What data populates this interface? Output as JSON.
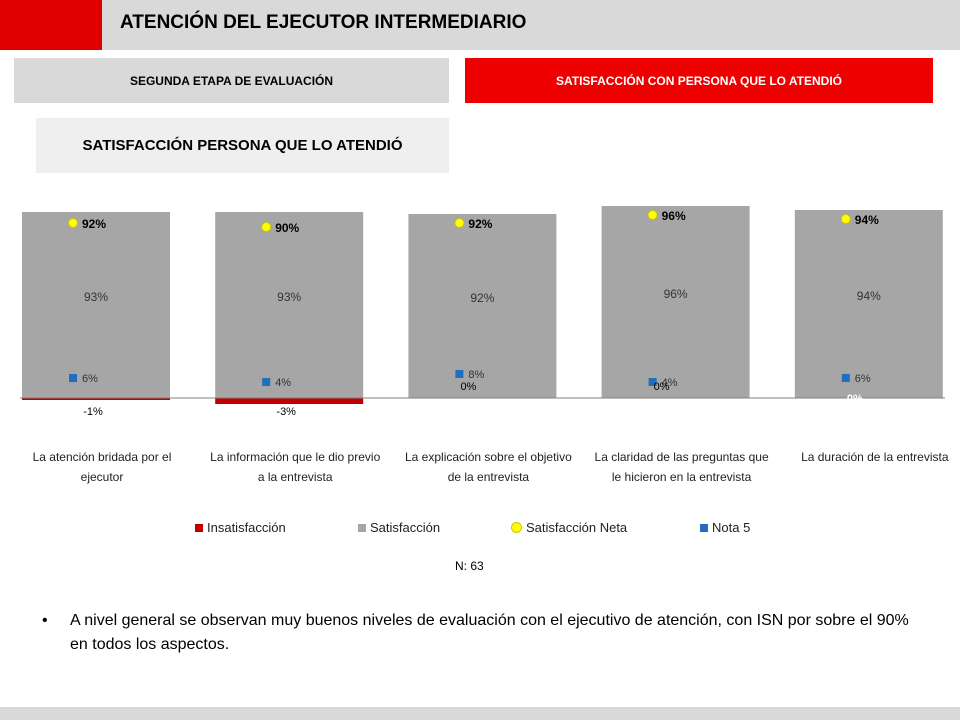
{
  "header": {
    "title": "ATENCIÓN DEL EJECUTOR INTERMEDIARIO"
  },
  "tabs": {
    "stage": "SEGUNDA ETAPA DE EVALUACIÓN",
    "satisfaction": "SATISFACCIÓN CON PERSONA QUE LO ATENDIÓ"
  },
  "section_title": "SATISFACCIÓN PERSONA QUE LO ATENDIÓ",
  "colors": {
    "insatisfaccion": "#c00000",
    "satisfaccion": "#a6a6a6",
    "neta": "#ffff00",
    "nota5": "#1f6fc0",
    "accent": "#ee0000"
  },
  "chart_data": {
    "type": "bar",
    "categories": [
      [
        "La atención bridada por el",
        "ejecutor"
      ],
      [
        "La información que le dio previo",
        "a la entrevista"
      ],
      [
        "La explicación sobre el objetivo",
        "de la entrevista"
      ],
      [
        "La claridad de las preguntas que",
        "le hicieron en la entrevista"
      ],
      [
        "La duración de la entrevista"
      ]
    ],
    "series": [
      {
        "name": "Insatisfacción",
        "values": [
          -1,
          -3,
          0,
          0,
          0
        ],
        "labels": [
          "-1%",
          "-3%",
          "0%",
          "0%",
          "0%"
        ]
      },
      {
        "name": "Satisfacción",
        "values": [
          93,
          93,
          92,
          96,
          94
        ],
        "labels": [
          "93%",
          "93%",
          "92%",
          "96%",
          "94%"
        ]
      },
      {
        "name": "Satisfacción Neta",
        "values": [
          92,
          90,
          92,
          96,
          94
        ],
        "labels": [
          "92%",
          "90%",
          "92%",
          "96%",
          "94%"
        ]
      },
      {
        "name": "Nota 5",
        "values": [
          6,
          4,
          8,
          4,
          6
        ],
        "labels": [
          "6%",
          "4%",
          "8%",
          "4%",
          "6%"
        ]
      }
    ],
    "ylim": [
      -5,
      100
    ],
    "legend": "bottom"
  },
  "n_label": "N: 63",
  "bullet_text": "A nivel general se observan muy buenos niveles de evaluación con el ejecutivo de atención, con ISN por sobre el 90% en todos los aspectos."
}
